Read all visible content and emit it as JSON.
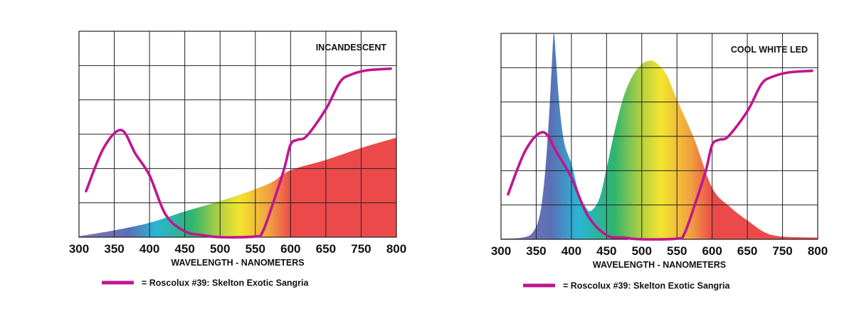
{
  "chart_data": [
    {
      "type": "area",
      "title": "INCANDESCENT",
      "xlabel": "WAVELENGTH - NANOMETERS",
      "ylabel": "",
      "x_tick_labels": [
        "300",
        "350",
        "400",
        "450",
        "500",
        "550",
        "600",
        "650",
        "750",
        "800"
      ],
      "ylim": [
        0,
        6
      ],
      "grid": true,
      "legend": {
        "placement": "bottom",
        "label": "= Roscolux #39: Skelton Exotic Sangria"
      },
      "colors": {
        "filter_line": "#c0168f",
        "spectrum": [
          "#8b74b8",
          "#5b6fb5",
          "#2ab5d5",
          "#2db56e",
          "#b5d040",
          "#f2e52e",
          "#f0a040",
          "#ec4a4a"
        ]
      },
      "series": [
        {
          "kind": "area-spectrum",
          "x": [
            300,
            350,
            400,
            450,
            500,
            550,
            575,
            600,
            650,
            750,
            800
          ],
          "y": [
            0.03,
            0.2,
            0.42,
            0.75,
            1.05,
            1.4,
            1.62,
            1.95,
            2.25,
            2.6,
            2.9
          ]
        },
        {
          "kind": "line",
          "name": "Roscolux #39: Skelton Exotic Sangria",
          "x": [
            310,
            335,
            360,
            380,
            400,
            423,
            450,
            475,
            500,
            550,
            560,
            574,
            591,
            600,
            610,
            623,
            650,
            690,
            720,
            758,
            792
          ],
          "y": [
            1.34,
            2.6,
            3.12,
            2.43,
            1.8,
            0.65,
            0.17,
            0.06,
            0.0,
            0.02,
            0.14,
            0.92,
            2.0,
            2.7,
            2.84,
            2.95,
            3.73,
            4.52,
            4.73,
            4.86,
            4.91
          ]
        }
      ]
    },
    {
      "type": "area",
      "title": "COOL WHITE LED",
      "xlabel": "WAVELENGTH - NANOMETERS",
      "ylabel": "",
      "x_tick_labels": [
        "300",
        "350",
        "400",
        "450",
        "500",
        "550",
        "600",
        "650",
        "750",
        "800"
      ],
      "ylim": [
        0,
        6
      ],
      "grid": true,
      "legend": {
        "placement": "bottom",
        "label": "= Roscolux #39: Skelton Exotic Sangria"
      },
      "colors": {
        "filter_line": "#c0168f",
        "spectrum": [
          "#8b74b8",
          "#5b6fb5",
          "#2ab5d5",
          "#2db56e",
          "#b5d040",
          "#f2e52e",
          "#f0a040",
          "#ec4a4a"
        ]
      },
      "series": [
        {
          "kind": "area-spectrum",
          "x": [
            300,
            330,
            345,
            355,
            362,
            368,
            372,
            375,
            378,
            383,
            390,
            400,
            410,
            420,
            428,
            440,
            450,
            462,
            475,
            488,
            500,
            510,
            520,
            535,
            550,
            575,
            600,
            625,
            650,
            700,
            750,
            800
          ],
          "y": [
            0.02,
            0.05,
            0.2,
            0.7,
            1.8,
            3.5,
            5.0,
            6.0,
            5.3,
            3.9,
            2.8,
            2.2,
            1.4,
            0.95,
            0.83,
            1.2,
            2.07,
            3.2,
            4.2,
            4.8,
            5.1,
            5.2,
            5.15,
            4.8,
            4.07,
            2.9,
            1.5,
            0.95,
            0.55,
            0.2,
            0.08,
            0.05
          ]
        },
        {
          "kind": "line",
          "name": "Roscolux #39: Skelton Exotic Sangria",
          "x": [
            310,
            335,
            360,
            380,
            400,
            423,
            450,
            475,
            500,
            550,
            560,
            574,
            591,
            600,
            610,
            623,
            650,
            690,
            720,
            758,
            792
          ],
          "y": [
            1.31,
            2.6,
            3.12,
            2.5,
            1.8,
            0.7,
            0.12,
            0.05,
            0.0,
            0.02,
            0.14,
            0.92,
            2.0,
            2.75,
            2.9,
            3.0,
            3.73,
            4.52,
            4.73,
            4.86,
            4.91
          ]
        }
      ]
    }
  ]
}
